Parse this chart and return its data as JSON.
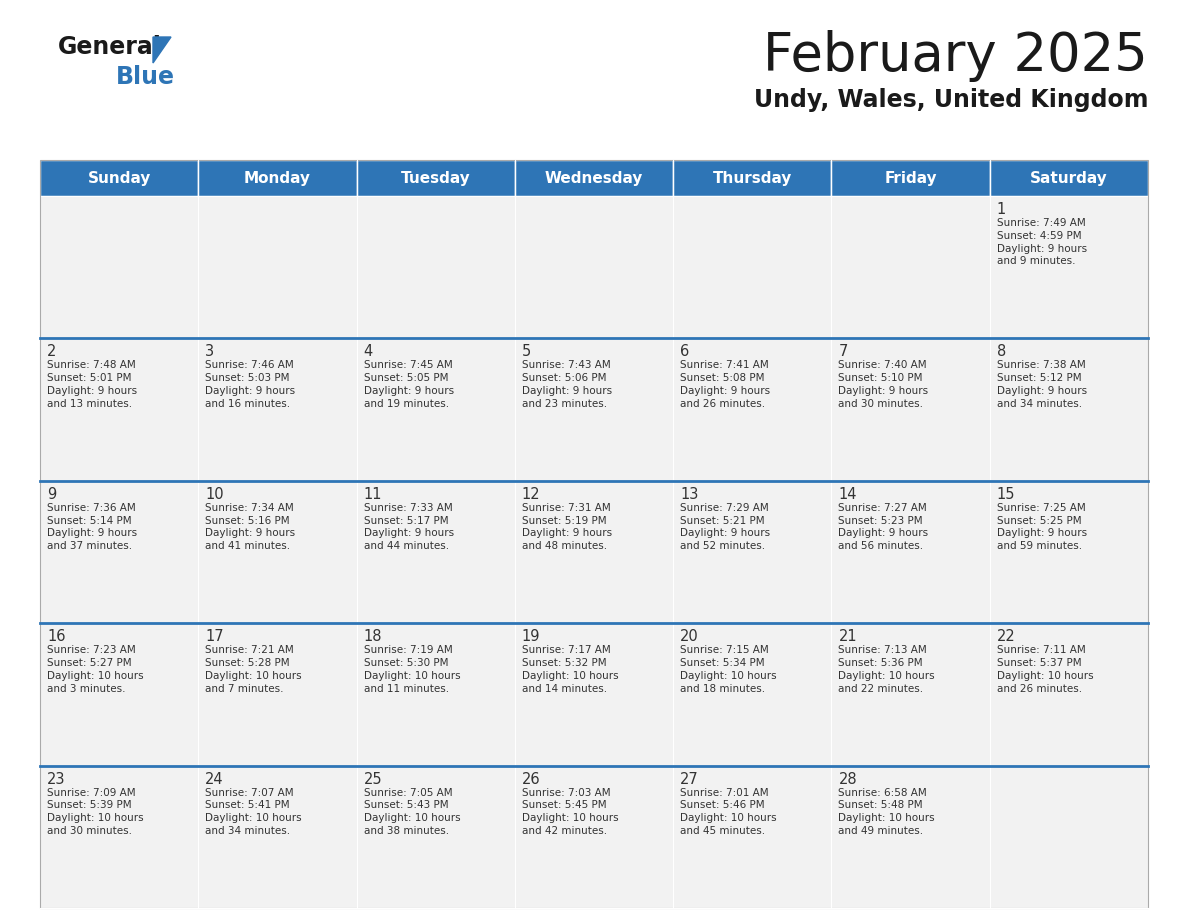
{
  "title": "February 2025",
  "subtitle": "Undy, Wales, United Kingdom",
  "header_bg": "#2E75B6",
  "header_text_color": "#FFFFFF",
  "day_names": [
    "Sunday",
    "Monday",
    "Tuesday",
    "Wednesday",
    "Thursday",
    "Friday",
    "Saturday"
  ],
  "cell_bg_light": "#F2F2F2",
  "cell_bg_white": "#FFFFFF",
  "divider_color": "#2E75B6",
  "text_color": "#333333",
  "calendar": [
    [
      null,
      null,
      null,
      null,
      null,
      null,
      {
        "day": 1,
        "sunrise": "7:49 AM",
        "sunset": "4:59 PM",
        "daylight": "9 hours\nand 9 minutes."
      }
    ],
    [
      {
        "day": 2,
        "sunrise": "7:48 AM",
        "sunset": "5:01 PM",
        "daylight": "9 hours\nand 13 minutes."
      },
      {
        "day": 3,
        "sunrise": "7:46 AM",
        "sunset": "5:03 PM",
        "daylight": "9 hours\nand 16 minutes."
      },
      {
        "day": 4,
        "sunrise": "7:45 AM",
        "sunset": "5:05 PM",
        "daylight": "9 hours\nand 19 minutes."
      },
      {
        "day": 5,
        "sunrise": "7:43 AM",
        "sunset": "5:06 PM",
        "daylight": "9 hours\nand 23 minutes."
      },
      {
        "day": 6,
        "sunrise": "7:41 AM",
        "sunset": "5:08 PM",
        "daylight": "9 hours\nand 26 minutes."
      },
      {
        "day": 7,
        "sunrise": "7:40 AM",
        "sunset": "5:10 PM",
        "daylight": "9 hours\nand 30 minutes."
      },
      {
        "day": 8,
        "sunrise": "7:38 AM",
        "sunset": "5:12 PM",
        "daylight": "9 hours\nand 34 minutes."
      }
    ],
    [
      {
        "day": 9,
        "sunrise": "7:36 AM",
        "sunset": "5:14 PM",
        "daylight": "9 hours\nand 37 minutes."
      },
      {
        "day": 10,
        "sunrise": "7:34 AM",
        "sunset": "5:16 PM",
        "daylight": "9 hours\nand 41 minutes."
      },
      {
        "day": 11,
        "sunrise": "7:33 AM",
        "sunset": "5:17 PM",
        "daylight": "9 hours\nand 44 minutes."
      },
      {
        "day": 12,
        "sunrise": "7:31 AM",
        "sunset": "5:19 PM",
        "daylight": "9 hours\nand 48 minutes."
      },
      {
        "day": 13,
        "sunrise": "7:29 AM",
        "sunset": "5:21 PM",
        "daylight": "9 hours\nand 52 minutes."
      },
      {
        "day": 14,
        "sunrise": "7:27 AM",
        "sunset": "5:23 PM",
        "daylight": "9 hours\nand 56 minutes."
      },
      {
        "day": 15,
        "sunrise": "7:25 AM",
        "sunset": "5:25 PM",
        "daylight": "9 hours\nand 59 minutes."
      }
    ],
    [
      {
        "day": 16,
        "sunrise": "7:23 AM",
        "sunset": "5:27 PM",
        "daylight": "10 hours\nand 3 minutes."
      },
      {
        "day": 17,
        "sunrise": "7:21 AM",
        "sunset": "5:28 PM",
        "daylight": "10 hours\nand 7 minutes."
      },
      {
        "day": 18,
        "sunrise": "7:19 AM",
        "sunset": "5:30 PM",
        "daylight": "10 hours\nand 11 minutes."
      },
      {
        "day": 19,
        "sunrise": "7:17 AM",
        "sunset": "5:32 PM",
        "daylight": "10 hours\nand 14 minutes."
      },
      {
        "day": 20,
        "sunrise": "7:15 AM",
        "sunset": "5:34 PM",
        "daylight": "10 hours\nand 18 minutes."
      },
      {
        "day": 21,
        "sunrise": "7:13 AM",
        "sunset": "5:36 PM",
        "daylight": "10 hours\nand 22 minutes."
      },
      {
        "day": 22,
        "sunrise": "7:11 AM",
        "sunset": "5:37 PM",
        "daylight": "10 hours\nand 26 minutes."
      }
    ],
    [
      {
        "day": 23,
        "sunrise": "7:09 AM",
        "sunset": "5:39 PM",
        "daylight": "10 hours\nand 30 minutes."
      },
      {
        "day": 24,
        "sunrise": "7:07 AM",
        "sunset": "5:41 PM",
        "daylight": "10 hours\nand 34 minutes."
      },
      {
        "day": 25,
        "sunrise": "7:05 AM",
        "sunset": "5:43 PM",
        "daylight": "10 hours\nand 38 minutes."
      },
      {
        "day": 26,
        "sunrise": "7:03 AM",
        "sunset": "5:45 PM",
        "daylight": "10 hours\nand 42 minutes."
      },
      {
        "day": 27,
        "sunrise": "7:01 AM",
        "sunset": "5:46 PM",
        "daylight": "10 hours\nand 45 minutes."
      },
      {
        "day": 28,
        "sunrise": "6:58 AM",
        "sunset": "5:48 PM",
        "daylight": "10 hours\nand 49 minutes."
      },
      null
    ]
  ]
}
